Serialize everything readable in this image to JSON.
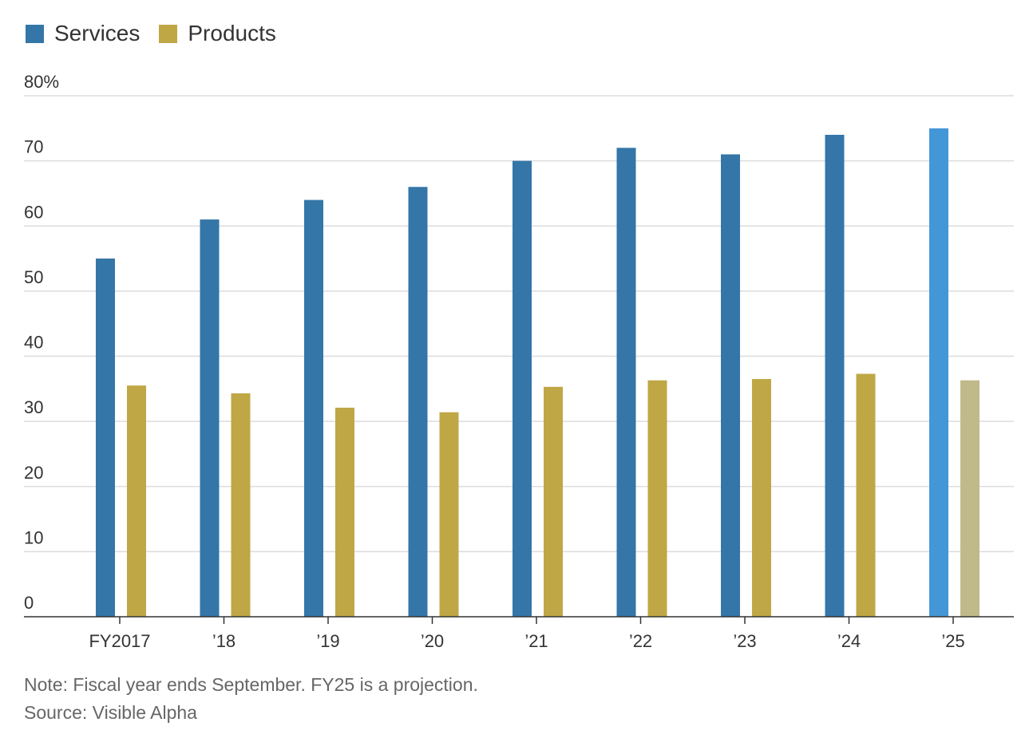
{
  "legend": [
    {
      "label": "Services",
      "color": "#3476a8"
    },
    {
      "label": "Products",
      "color": "#bfa746"
    }
  ],
  "chart_data": {
    "type": "bar",
    "categories": [
      "FY2017",
      "’18",
      "’19",
      "’20",
      "’21",
      "’22",
      "’23",
      "’24",
      "’25"
    ],
    "series": [
      {
        "name": "Services",
        "values": [
          55,
          61,
          64,
          66,
          70,
          72,
          71,
          74,
          75
        ],
        "color": "#3476a8",
        "projection_color": "#4497d6"
      },
      {
        "name": "Products",
        "values": [
          35.5,
          34.3,
          32.1,
          31.4,
          35.3,
          36.3,
          36.5,
          37.3,
          36.3
        ],
        "color": "#bfa746",
        "projection_color": "#c0ba8a"
      }
    ],
    "projected_index": 8,
    "ylim": [
      0,
      80
    ],
    "yticks": [
      0,
      10,
      20,
      30,
      40,
      50,
      60,
      70,
      80
    ],
    "ytick_labels": [
      "0",
      "10",
      "20",
      "30",
      "40",
      "50",
      "60",
      "70",
      "80%"
    ],
    "grid": true,
    "title": "",
    "xlabel": "",
    "ylabel": ""
  },
  "note": "Note: Fiscal year ends September. FY25 is a projection.",
  "source": "Source: Visible Alpha"
}
